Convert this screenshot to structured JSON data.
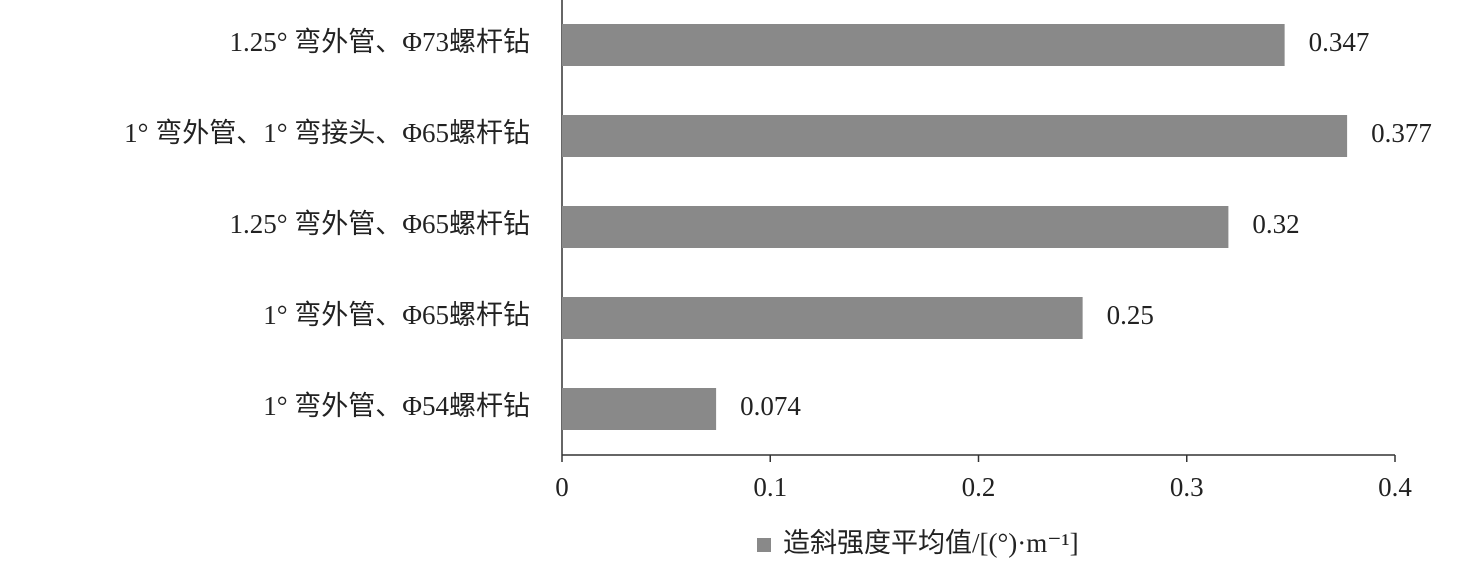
{
  "chart_data": {
    "type": "hbar",
    "categories": [
      "1.25° 弯外管、Φ73螺杆钻",
      "1° 弯外管、1° 弯接头、Φ65螺杆钻",
      "1.25° 弯外管、Φ65螺杆钻",
      "1° 弯外管、Φ65螺杆钻",
      "1° 弯外管、Φ54螺杆钻"
    ],
    "series": [
      {
        "name": "造斜强度平均值/[(°)·m⁻¹]",
        "color": "#898989",
        "values": [
          0.347,
          0.377,
          0.32,
          0.25,
          0.074
        ]
      }
    ],
    "xlim": [
      0,
      0.4
    ],
    "xticks": [
      0,
      0.1,
      0.2,
      0.3,
      0.4
    ],
    "legend": "bottom"
  }
}
